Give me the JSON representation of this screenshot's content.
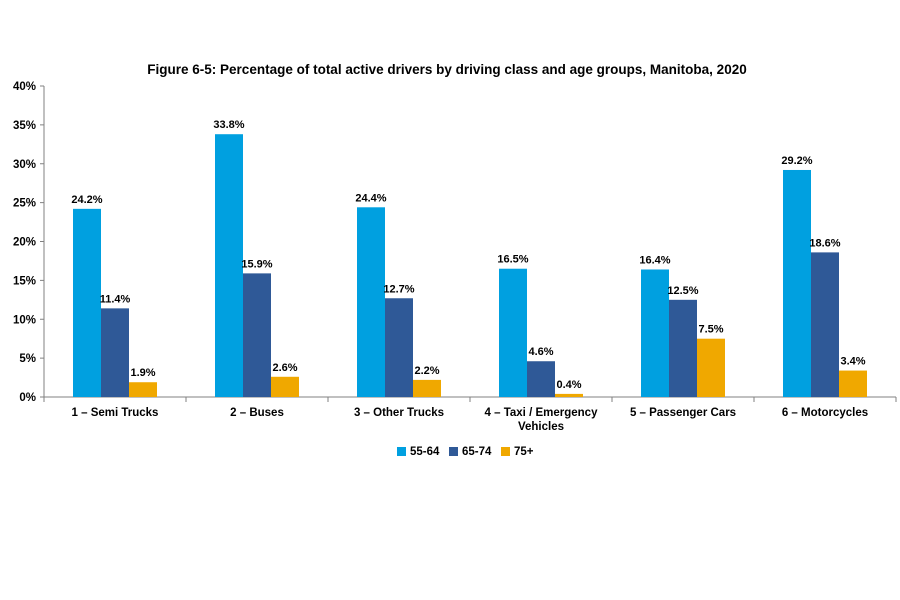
{
  "chart_data": {
    "type": "bar",
    "title": "Figure 6-5: Percentage of total active drivers by driving class and age groups, Manitoba, 2020",
    "xlabel": "",
    "ylabel": "",
    "ylim": [
      0,
      40
    ],
    "yticks": [
      "0%",
      "5%",
      "10%",
      "15%",
      "20%",
      "25%",
      "30%",
      "35%",
      "40%"
    ],
    "ytick_values": [
      0,
      5,
      10,
      15,
      20,
      25,
      30,
      35,
      40
    ],
    "grid": false,
    "legend_position": "bottom",
    "categories": [
      [
        "1 – Semi Trucks"
      ],
      [
        "2 – Buses"
      ],
      [
        "3 – Other Trucks"
      ],
      [
        "4 – Taxi / Emergency",
        "Vehicles"
      ],
      [
        "5 – Passenger Cars"
      ],
      [
        "6 – Motorcycles"
      ]
    ],
    "series": [
      {
        "name": "55-64",
        "color": "#00A0E0",
        "values": [
          24.2,
          33.8,
          24.4,
          16.5,
          16.4,
          29.2
        ],
        "labels": [
          "24.2%",
          "33.8%",
          "24.4%",
          "16.5%",
          "16.4%",
          "29.2%"
        ]
      },
      {
        "name": "65-74",
        "color": "#2F5997",
        "values": [
          11.4,
          15.9,
          12.7,
          4.6,
          12.5,
          18.6
        ],
        "labels": [
          "11.4%",
          "15.9%",
          "12.7%",
          "4.6%",
          "12.5%",
          "18.6%"
        ]
      },
      {
        "name": "75+",
        "color": "#F0A800",
        "values": [
          1.9,
          2.6,
          2.2,
          0.4,
          7.5,
          3.4
        ],
        "labels": [
          "1.9%",
          "2.6%",
          "2.2%",
          "0.4%",
          "7.5%",
          "3.4%"
        ]
      }
    ]
  }
}
